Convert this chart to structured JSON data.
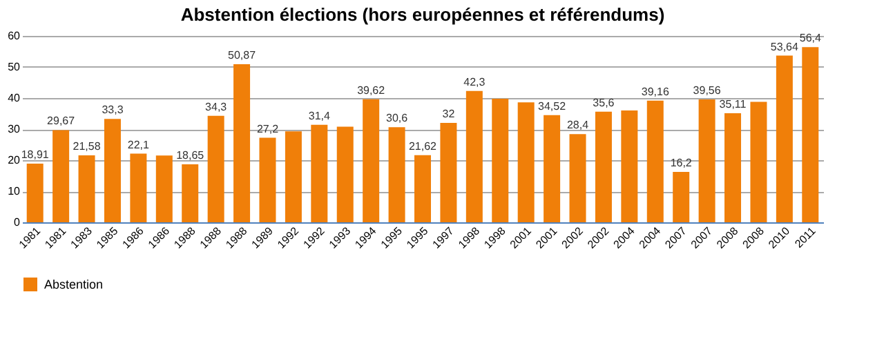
{
  "chart_data": {
    "type": "bar",
    "title": "Abstention  élections (hors européennes et référendums)",
    "categories": [
      "1981",
      "1981",
      "1983",
      "1985",
      "1986",
      "1986",
      "1988",
      "1988",
      "1988",
      "1989",
      "1992",
      "1992",
      "1993",
      "1994",
      "1995",
      "1995",
      "1997",
      "1998",
      "1998",
      "2001",
      "2001",
      "2002",
      "2002",
      "2004",
      "2004",
      "2007",
      "2007",
      "2008",
      "2008",
      "2010",
      "2011"
    ],
    "series": [
      {
        "name": "Abstention",
        "color": "#f07f09",
        "values": [
          18.91,
          29.67,
          21.58,
          33.3,
          22.1,
          21.5,
          18.65,
          34.3,
          50.87,
          27.2,
          29.3,
          31.4,
          30.8,
          39.62,
          30.6,
          21.62,
          32,
          42.3,
          39.8,
          38.6,
          34.52,
          28.4,
          35.6,
          36,
          39.16,
          16.2,
          39.56,
          35.11,
          38.8,
          53.64,
          56.4
        ],
        "value_labels": [
          "18,91",
          "29,67",
          "21,58",
          "33,3",
          "22,1",
          null,
          "18,65",
          "34,3",
          "50,87",
          "27,2",
          null,
          "31,4",
          null,
          "39,62",
          "30,6",
          "21,62",
          "32",
          "42,3",
          null,
          null,
          "34,52",
          "28,4",
          "35,6",
          null,
          "39,16",
          "16,2",
          "39,56",
          "35,11",
          null,
          "53,64",
          "56,4"
        ]
      }
    ],
    "ylim": [
      0,
      60
    ],
    "yticks": [
      0,
      10,
      20,
      30,
      40,
      50,
      60
    ],
    "grid": "y",
    "legend": "bottom"
  }
}
